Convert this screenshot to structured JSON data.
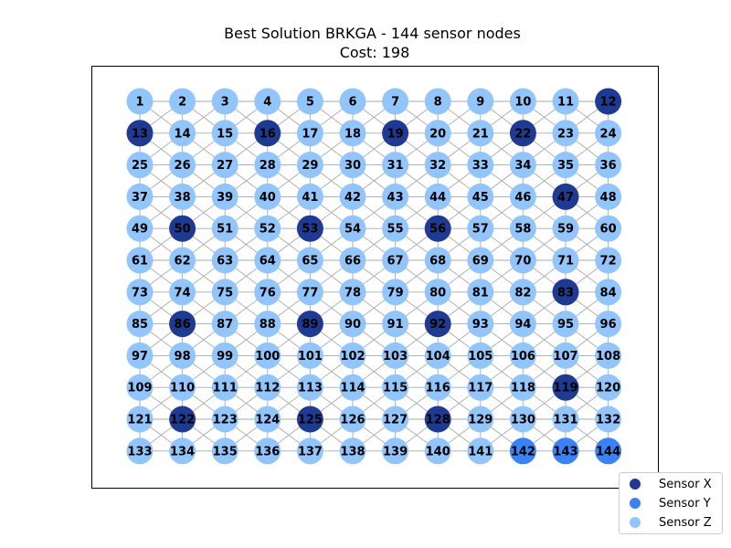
{
  "title": "Best Solution BRKGA - 144 sensor nodes",
  "subtitle": "Cost: 198",
  "legend": [
    {
      "label": "Sensor X",
      "color": "#1f3a93"
    },
    {
      "label": "Sensor Y",
      "color": "#3b82f6"
    },
    {
      "label": "Sensor Z",
      "color": "#93c5fd"
    }
  ],
  "grid": {
    "rows": 12,
    "cols": 12
  },
  "sensor_x_nodes": [
    12,
    13,
    16,
    19,
    22,
    47,
    50,
    53,
    56,
    83,
    86,
    89,
    92,
    119,
    122,
    125,
    128
  ],
  "sensor_y_nodes": [
    142,
    143,
    144
  ]
}
